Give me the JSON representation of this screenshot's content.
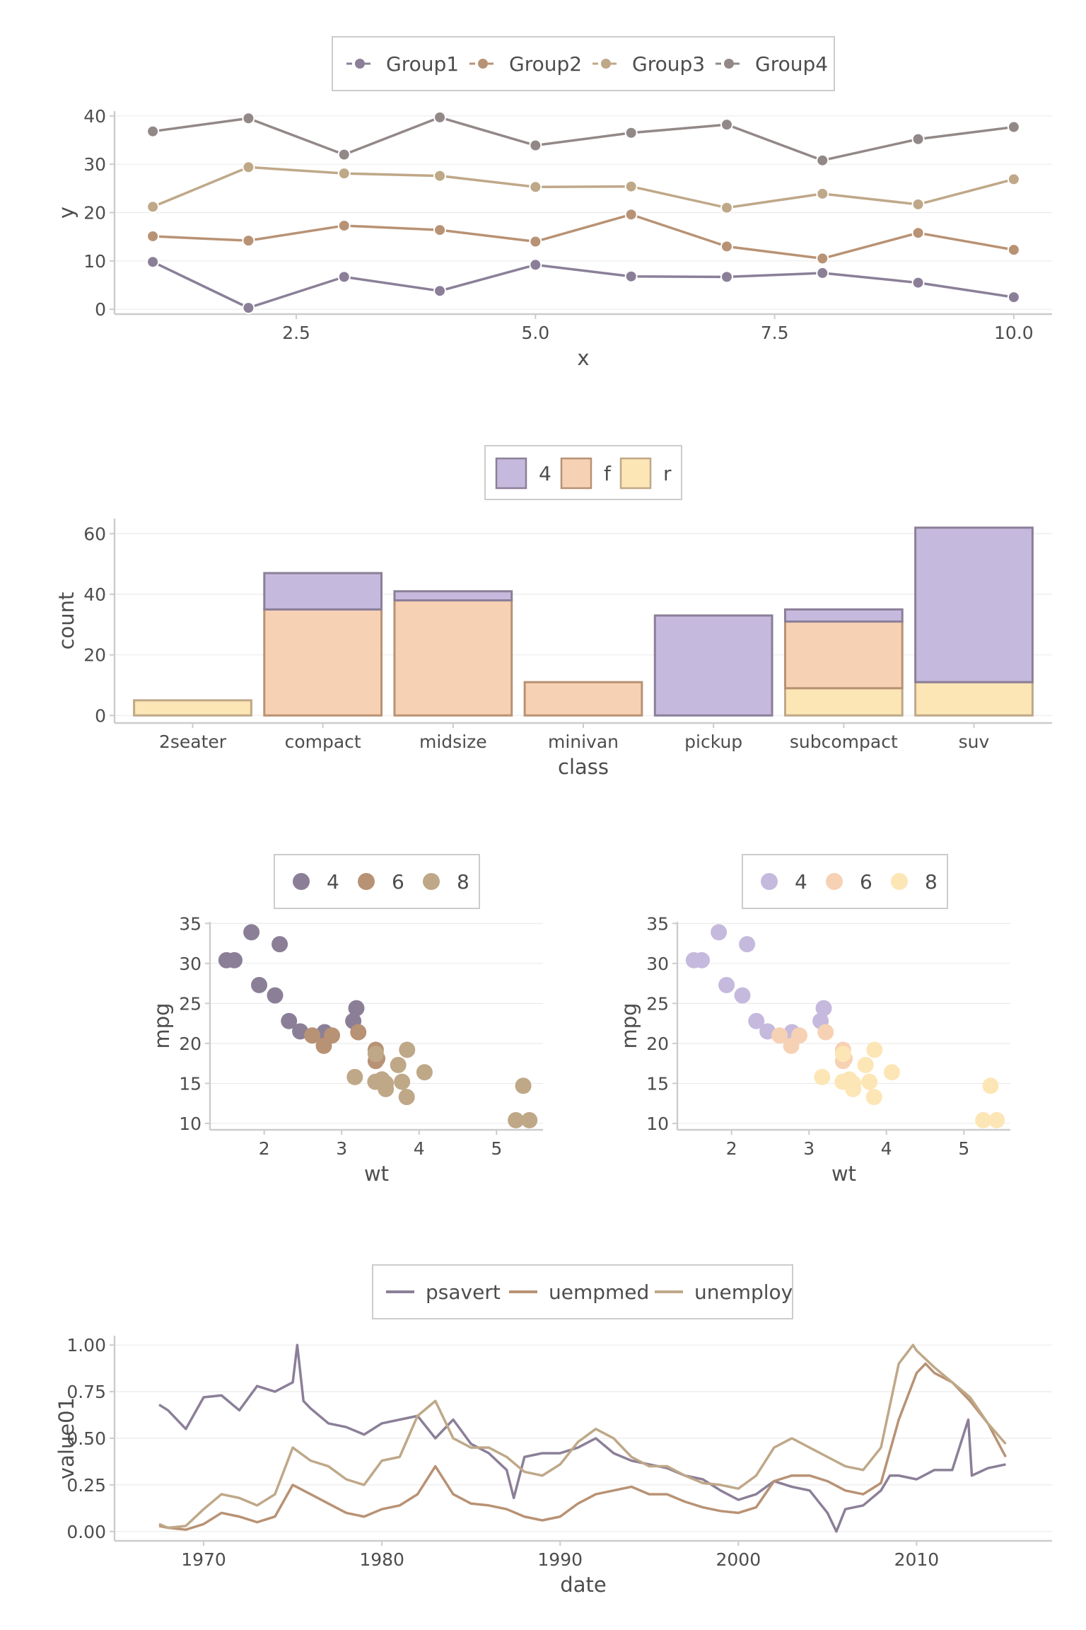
{
  "colors": {
    "purple_dark": "#8b7f98",
    "tan_dark": "#b89274",
    "sand_dark": "#bfa888",
    "gray_dark": "#938888",
    "purple_light": "#c5badd",
    "peach_light": "#f7d1b4",
    "cream_light": "#fde6b6"
  },
  "chart_data": [
    {
      "id": "lines",
      "type": "line",
      "xlabel": "x",
      "ylabel": "y",
      "xlim": [
        0.6,
        10.4
      ],
      "ylim": [
        -1,
        41
      ],
      "xticks": [
        "2.5",
        "5.0",
        "7.5",
        "10.0"
      ],
      "yticks": [
        "0",
        "10",
        "20",
        "30",
        "40"
      ],
      "legend_position": "top",
      "x": [
        1,
        2,
        3,
        4,
        5,
        6,
        7,
        8,
        9,
        10
      ],
      "series": [
        {
          "name": "Group1",
          "color": "#8b7f98",
          "values": [
            9.8,
            0.3,
            6.7,
            3.8,
            9.2,
            6.8,
            6.7,
            7.5,
            5.5,
            2.5
          ]
        },
        {
          "name": "Group2",
          "color": "#b89274",
          "values": [
            15.1,
            14.2,
            17.3,
            16.4,
            14.0,
            19.6,
            13.0,
            10.5,
            15.8,
            12.3
          ]
        },
        {
          "name": "Group3",
          "color": "#bfa888",
          "values": [
            21.2,
            29.4,
            28.1,
            27.6,
            25.3,
            25.4,
            21.0,
            23.9,
            21.7,
            26.9
          ]
        },
        {
          "name": "Group4",
          "color": "#938888",
          "values": [
            36.8,
            39.5,
            32.0,
            39.7,
            33.9,
            36.5,
            38.2,
            30.8,
            35.2,
            37.7
          ]
        }
      ]
    },
    {
      "id": "bars",
      "type": "bar",
      "stacked": true,
      "xlabel": "class",
      "ylabel": "count",
      "ylim": [
        -2.5,
        65
      ],
      "yticks": [
        "0",
        "20",
        "40",
        "60"
      ],
      "legend_position": "top",
      "categories": [
        "2seater",
        "compact",
        "midsize",
        "minivan",
        "pickup",
        "subcompact",
        "suv"
      ],
      "series": [
        {
          "name": "4",
          "fill": "#c5badd",
          "stroke": "#8b7f98",
          "values": [
            0,
            12,
            3,
            0,
            33,
            4,
            51
          ]
        },
        {
          "name": "f",
          "fill": "#f7d1b4",
          "stroke": "#b89274",
          "values": [
            0,
            35,
            38,
            11,
            0,
            22,
            0
          ]
        },
        {
          "name": "r",
          "fill": "#fde6b6",
          "stroke": "#bfa888",
          "values": [
            5,
            0,
            0,
            0,
            0,
            9,
            11
          ]
        }
      ]
    },
    {
      "id": "scatter_dark",
      "type": "scatter",
      "xlabel": "wt",
      "ylabel": "mpg",
      "xlim": [
        1.3,
        5.6
      ],
      "ylim": [
        9.2,
        35.2
      ],
      "xticks": [
        "2",
        "3",
        "4",
        "5"
      ],
      "yticks": [
        "10",
        "15",
        "20",
        "25",
        "30",
        "35"
      ],
      "legend_position": "top",
      "groups": [
        {
          "name": "4",
          "color": "#8b7f98",
          "points": [
            [
              2.32,
              22.8
            ],
            [
              3.19,
              24.4
            ],
            [
              3.15,
              22.8
            ],
            [
              2.2,
              32.4
            ],
            [
              1.615,
              30.4
            ],
            [
              1.835,
              33.9
            ],
            [
              2.465,
              21.5
            ],
            [
              1.935,
              27.3
            ],
            [
              2.14,
              26.0
            ],
            [
              1.513,
              30.4
            ],
            [
              2.78,
              21.4
            ]
          ]
        },
        {
          "name": "6",
          "color": "#b89274",
          "points": [
            [
              2.62,
              21.0
            ],
            [
              2.875,
              21.0
            ],
            [
              3.215,
              21.4
            ],
            [
              3.46,
              18.1
            ],
            [
              3.44,
              19.2
            ],
            [
              3.44,
              17.8
            ],
            [
              2.77,
              19.7
            ]
          ]
        },
        {
          "name": "8",
          "color": "#bfa888",
          "points": [
            [
              3.44,
              18.7
            ],
            [
              3.57,
              14.3
            ],
            [
              4.07,
              16.4
            ],
            [
              3.73,
              17.3
            ],
            [
              3.78,
              15.2
            ],
            [
              5.25,
              10.4
            ],
            [
              5.424,
              10.4
            ],
            [
              5.345,
              14.7
            ],
            [
              3.52,
              15.5
            ],
            [
              3.435,
              15.2
            ],
            [
              3.84,
              13.3
            ],
            [
              3.845,
              19.2
            ],
            [
              3.17,
              15.8
            ],
            [
              3.57,
              15.0
            ]
          ]
        }
      ]
    },
    {
      "id": "scatter_light",
      "type": "scatter",
      "xlabel": "wt",
      "ylabel": "mpg",
      "xlim": [
        1.3,
        5.6
      ],
      "ylim": [
        9.2,
        35.2
      ],
      "xticks": [
        "2",
        "3",
        "4",
        "5"
      ],
      "yticks": [
        "10",
        "15",
        "20",
        "25",
        "30",
        "35"
      ],
      "legend_position": "top",
      "groups": [
        {
          "name": "4",
          "color": "#c5badd",
          "points": [
            [
              2.32,
              22.8
            ],
            [
              3.19,
              24.4
            ],
            [
              3.15,
              22.8
            ],
            [
              2.2,
              32.4
            ],
            [
              1.615,
              30.4
            ],
            [
              1.835,
              33.9
            ],
            [
              2.465,
              21.5
            ],
            [
              1.935,
              27.3
            ],
            [
              2.14,
              26.0
            ],
            [
              1.513,
              30.4
            ],
            [
              2.78,
              21.4
            ]
          ]
        },
        {
          "name": "6",
          "color": "#f7d1b4",
          "points": [
            [
              2.62,
              21.0
            ],
            [
              2.875,
              21.0
            ],
            [
              3.215,
              21.4
            ],
            [
              3.46,
              18.1
            ],
            [
              3.44,
              19.2
            ],
            [
              3.44,
              17.8
            ],
            [
              2.77,
              19.7
            ]
          ]
        },
        {
          "name": "8",
          "color": "#fde6b6",
          "points": [
            [
              3.44,
              18.7
            ],
            [
              3.57,
              14.3
            ],
            [
              4.07,
              16.4
            ],
            [
              3.73,
              17.3
            ],
            [
              3.78,
              15.2
            ],
            [
              5.25,
              10.4
            ],
            [
              5.424,
              10.4
            ],
            [
              5.345,
              14.7
            ],
            [
              3.52,
              15.5
            ],
            [
              3.435,
              15.2
            ],
            [
              3.84,
              13.3
            ],
            [
              3.845,
              19.2
            ],
            [
              3.17,
              15.8
            ],
            [
              3.57,
              15.0
            ]
          ]
        }
      ]
    },
    {
      "id": "timeseries",
      "type": "line",
      "xlabel": "date",
      "ylabel": "value01",
      "xlim": [
        1965.0,
        2017.6
      ],
      "ylim": [
        -0.05,
        1.05
      ],
      "xticks": [
        "1970",
        "1980",
        "1990",
        "2000",
        "2010"
      ],
      "yticks": [
        "0.00",
        "0.25",
        "0.50",
        "0.75",
        "1.00"
      ],
      "legend_position": "top",
      "series": [
        {
          "name": "psavert",
          "color": "#8b7f98",
          "x": [
            1967.5,
            1968,
            1969,
            1970,
            1971,
            1972,
            1973,
            1974,
            1975,
            1975.25,
            1975.6,
            1976,
            1977,
            1978,
            1979,
            1980,
            1981,
            1982,
            1983,
            1984,
            1985,
            1986,
            1987,
            1987.4,
            1988,
            1989,
            1990,
            1991,
            1992,
            1993,
            1994,
            1995,
            1996,
            1997,
            1998,
            1999,
            2000,
            2001,
            2002,
            2003,
            2004,
            2005,
            2005.5,
            2006,
            2007,
            2008,
            2008.5,
            2009,
            2010,
            2011,
            2012,
            2012.9,
            2013.1,
            2014,
            2015
          ],
          "values": [
            0.68,
            0.65,
            0.55,
            0.72,
            0.73,
            0.65,
            0.78,
            0.75,
            0.8,
            1.0,
            0.7,
            0.66,
            0.58,
            0.56,
            0.52,
            0.58,
            0.6,
            0.62,
            0.5,
            0.6,
            0.47,
            0.42,
            0.33,
            0.18,
            0.4,
            0.42,
            0.42,
            0.45,
            0.5,
            0.42,
            0.38,
            0.36,
            0.34,
            0.3,
            0.28,
            0.22,
            0.17,
            0.2,
            0.27,
            0.24,
            0.22,
            0.1,
            0.0,
            0.12,
            0.14,
            0.22,
            0.3,
            0.3,
            0.28,
            0.33,
            0.33,
            0.6,
            0.3,
            0.34,
            0.36
          ]
        },
        {
          "name": "uempmed",
          "color": "#b89274",
          "x": [
            1967.5,
            1968,
            1969,
            1970,
            1971,
            1972,
            1973,
            1974,
            1975,
            1976,
            1977,
            1978,
            1979,
            1980,
            1981,
            1982,
            1983,
            1984,
            1985,
            1986,
            1987,
            1988,
            1989,
            1990,
            1991,
            1992,
            1993,
            1994,
            1995,
            1996,
            1997,
            1998,
            1999,
            2000,
            2001,
            2002,
            2003,
            2004,
            2005,
            2006,
            2007,
            2008,
            2009,
            2010,
            2010.5,
            2011,
            2012,
            2013,
            2014,
            2015
          ],
          "values": [
            0.03,
            0.02,
            0.01,
            0.04,
            0.1,
            0.08,
            0.05,
            0.08,
            0.25,
            0.2,
            0.15,
            0.1,
            0.08,
            0.12,
            0.14,
            0.2,
            0.35,
            0.2,
            0.15,
            0.14,
            0.12,
            0.08,
            0.06,
            0.08,
            0.15,
            0.2,
            0.22,
            0.24,
            0.2,
            0.2,
            0.16,
            0.13,
            0.11,
            0.1,
            0.13,
            0.27,
            0.3,
            0.3,
            0.27,
            0.22,
            0.2,
            0.26,
            0.6,
            0.85,
            0.9,
            0.85,
            0.8,
            0.7,
            0.58,
            0.4
          ]
        },
        {
          "name": "unemploy",
          "color": "#bfa888",
          "x": [
            1967.5,
            1968,
            1969,
            1970,
            1971,
            1972,
            1973,
            1974,
            1975,
            1976,
            1977,
            1978,
            1979,
            1980,
            1981,
            1982,
            1983,
            1984,
            1985,
            1986,
            1987,
            1988,
            1989,
            1990,
            1991,
            1992,
            1993,
            1994,
            1995,
            1996,
            1997,
            1998,
            1999,
            2000,
            2001,
            2002,
            2003,
            2004,
            2005,
            2006,
            2007,
            2008,
            2009,
            2009.8,
            2010,
            2011,
            2012,
            2013,
            2014,
            2015
          ],
          "values": [
            0.04,
            0.02,
            0.03,
            0.12,
            0.2,
            0.18,
            0.14,
            0.2,
            0.45,
            0.38,
            0.35,
            0.28,
            0.25,
            0.38,
            0.4,
            0.62,
            0.7,
            0.5,
            0.45,
            0.45,
            0.4,
            0.32,
            0.3,
            0.36,
            0.48,
            0.55,
            0.5,
            0.4,
            0.35,
            0.35,
            0.3,
            0.26,
            0.25,
            0.23,
            0.3,
            0.45,
            0.5,
            0.45,
            0.4,
            0.35,
            0.33,
            0.45,
            0.9,
            1.0,
            0.97,
            0.88,
            0.8,
            0.72,
            0.58,
            0.47
          ]
        }
      ]
    }
  ]
}
